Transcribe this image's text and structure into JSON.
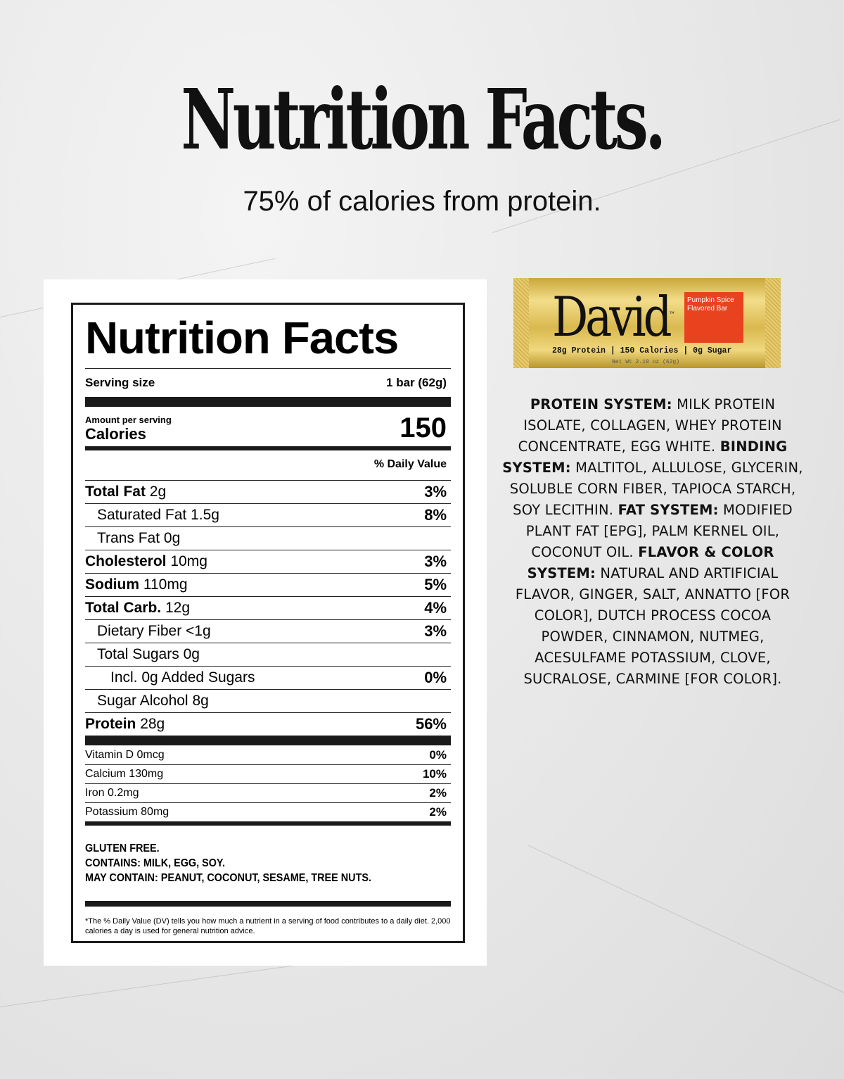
{
  "hero": {
    "title": "Nutrition Facts.",
    "subtitle": "75% of calories from protein."
  },
  "label": {
    "title": "Nutrition Facts",
    "serving_label": "Serving size",
    "serving_value": "1 bar (62g)",
    "amount_per_serving": "Amount per serving",
    "calories_label": "Calories",
    "calories_value": "150",
    "dv_header": "% Daily Value",
    "nutrients": [
      {
        "name": "Total Fat",
        "amount": "2g",
        "dv": "3%",
        "bold": true,
        "indent": 0
      },
      {
        "name": "Saturated Fat",
        "amount": "1.5g",
        "dv": "8%",
        "bold": false,
        "indent": 1
      },
      {
        "name": "Trans Fat",
        "amount": "0g",
        "dv": "",
        "bold": false,
        "indent": 1
      },
      {
        "name": "Cholesterol",
        "amount": "10mg",
        "dv": "3%",
        "bold": true,
        "indent": 0
      },
      {
        "name": "Sodium",
        "amount": "110mg",
        "dv": "5%",
        "bold": true,
        "indent": 0
      },
      {
        "name": "Total Carb.",
        "amount": "12g",
        "dv": "4%",
        "bold": true,
        "indent": 0
      },
      {
        "name": "Dietary Fiber",
        "amount": "<1g",
        "dv": "3%",
        "bold": false,
        "indent": 1
      },
      {
        "name": "Total Sugars",
        "amount": "0g",
        "dv": "",
        "bold": false,
        "indent": 1
      },
      {
        "name": "Incl. 0g Added Sugars",
        "amount": "",
        "dv": "0%",
        "bold": false,
        "indent": 2
      },
      {
        "name": "Sugar Alcohol",
        "amount": "8g",
        "dv": "",
        "bold": false,
        "indent": 1
      },
      {
        "name": "Protein",
        "amount": "28g",
        "dv": "56%",
        "bold": true,
        "indent": 0
      }
    ],
    "vitamins": [
      {
        "name": "Vitamin D 0mcg",
        "dv": "0%"
      },
      {
        "name": "Calcium 130mg",
        "dv": "10%"
      },
      {
        "name": "Iron 0.2mg",
        "dv": "2%"
      },
      {
        "name": "Potassium 80mg",
        "dv": "2%"
      }
    ],
    "allergens": [
      "GLUTEN FREE.",
      "CONTAINS: MILK, EGG, SOY.",
      "MAY CONTAIN: PEANUT, COCONUT, SESAME, TREE NUTS."
    ],
    "footnote": "*The % Daily Value (DV) tells you how much a nutrient in a serving of food contributes to a daily diet. 2,000 calories a day is used for general nutrition advice."
  },
  "product": {
    "brand": "David",
    "trademark": "™",
    "flavor": "Pumpkin Spice Flavored Bar",
    "claims": "28g Protein | 150 Calories | 0g Sugar",
    "net_weight": "Net Wt 2.19 oz (62g)",
    "colors": {
      "wrapper": "#d9b94f",
      "flavor_box": "#e8421f"
    }
  },
  "ingredients": [
    {
      "label": "PROTEIN SYSTEM:",
      "text": " MILK PROTEIN ISOLATE, COLLAGEN, WHEY PROTEIN CONCENTRATE, EGG WHITE. "
    },
    {
      "label": "BINDING SYSTEM:",
      "text": " MALTITOL, ALLULOSE, GLYCERIN, SOLUBLE CORN FIBER, TAPIOCA STARCH, SOY LECITHIN. "
    },
    {
      "label": "FAT SYSTEM:",
      "text": " MODIFIED PLANT FAT [EPG], PALM KERNEL OIL, COCONUT OIL. "
    },
    {
      "label": "FLAVOR & COLOR SYSTEM:",
      "text": " NATURAL AND ARTIFICIAL FLAVOR, GINGER, SALT, ANNATTO [FOR COLOR], DUTCH PROCESS COCOA POWDER, CINNAMON, NUTMEG, ACESULFAME POTASSIUM, CLOVE, SUCRALOSE, CARMINE [FOR COLOR]."
    }
  ]
}
